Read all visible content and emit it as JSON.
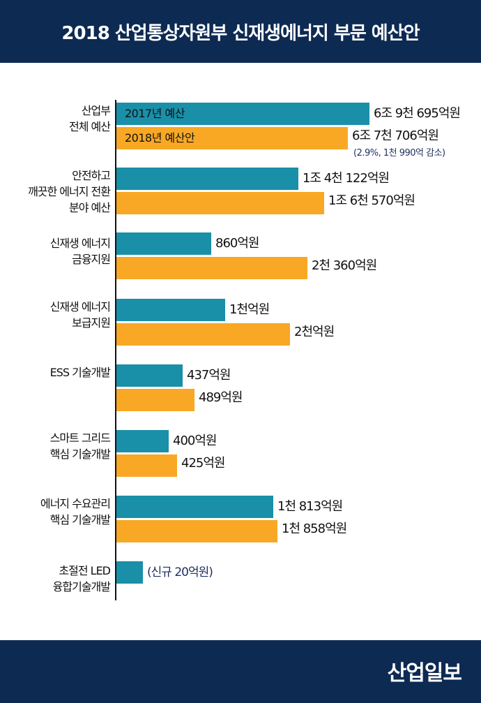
{
  "header": {
    "title": "2018 산업통상자원부 신재생에너지 부문 예산안"
  },
  "footer": {
    "logo": "산업일보"
  },
  "colors": {
    "2017": "#1a8fa8",
    "2018": "#f8a824",
    "header": "#0d2a52"
  },
  "chart_data": {
    "type": "bar",
    "orientation": "horizontal",
    "title": "2018 산업통상자원부 신재생에너지 부문 예산안",
    "unit": "억원",
    "series_labels": [
      "2017년 예산",
      "2018년 예산안"
    ],
    "categories": [
      {
        "name": "산업부\n전체 예산",
        "v2017": 69695,
        "v2018": 67706,
        "label2017": "6조 9천 695억원",
        "label2018": "6조 7천 706억원",
        "note": "(2.9%, 1천 990억 감소)"
      },
      {
        "name": "안전하고\n깨끗한 에너지 전환\n분야 예산",
        "v2017": 14122,
        "v2018": 16570,
        "label2017": "1조 4천 122억원",
        "label2018": "1조 6천 570억원"
      },
      {
        "name": "신재생 에너지\n금융지원",
        "v2017": 860,
        "v2018": 2360,
        "label2017": "860억원",
        "label2018": "2천 360억원"
      },
      {
        "name": "신재생 에너지\n보급지원",
        "v2017": 1000,
        "v2018": 2000,
        "label2017": "1천억원",
        "label2018": "2천억원"
      },
      {
        "name": "ESS 기술개발",
        "v2017": 437,
        "v2018": 489,
        "label2017": "437억원",
        "label2018": "489억원"
      },
      {
        "name": "스마트 그리드\n핵심 기술개발",
        "v2017": 400,
        "v2018": 425,
        "label2017": "400억원",
        "label2018": "425억원"
      },
      {
        "name": "에너지 수요관리\n핵심 기술개발",
        "v2017": 1813,
        "v2018": 1858,
        "label2017": "1천 813억원",
        "label2018": "1천 858억원"
      },
      {
        "name": "초절전 LED\n융합기술개발",
        "v2017": null,
        "v2018": 20,
        "label2018": "(신규 20억원)",
        "new": true
      }
    ]
  }
}
